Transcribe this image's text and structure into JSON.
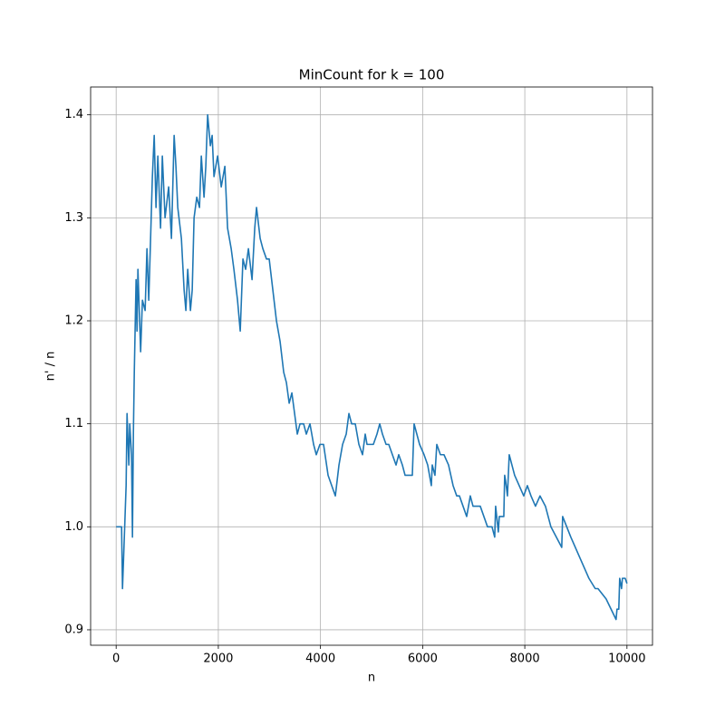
{
  "chart_data": {
    "type": "line",
    "title": "MinCount for k = 100",
    "x_label": "n",
    "y_label": "n' / n",
    "x": [
      0,
      106,
      124,
      160,
      195,
      213,
      248,
      266,
      301,
      319,
      337,
      355,
      390,
      408,
      426,
      479,
      514,
      567,
      603,
      638,
      674,
      709,
      745,
      780,
      816,
      869,
      904,
      957,
      1028,
      1082,
      1135,
      1170,
      1206,
      1277,
      1330,
      1365,
      1401,
      1454,
      1489,
      1525,
      1578,
      1631,
      1667,
      1720,
      1755,
      1791,
      1844,
      1879,
      1915,
      1986,
      2057,
      2128,
      2181,
      2252,
      2305,
      2376,
      2429,
      2482,
      2535,
      2589,
      2660,
      2713,
      2748,
      2819,
      2872,
      2943,
      2996,
      3067,
      3138,
      3209,
      3280,
      3333,
      3387,
      3440,
      3493,
      3546,
      3599,
      3670,
      3723,
      3794,
      3865,
      3918,
      3989,
      4060,
      4149,
      4220,
      4291,
      4362,
      4433,
      4504,
      4557,
      4610,
      4681,
      4752,
      4823,
      4876,
      4911,
      4965,
      5035,
      5106,
      5160,
      5213,
      5284,
      5337,
      5408,
      5479,
      5532,
      5603,
      5656,
      5709,
      5798,
      5833,
      5940,
      6028,
      6099,
      6170,
      6188,
      6241,
      6277,
      6348,
      6418,
      6507,
      6596,
      6667,
      6720,
      6791,
      6862,
      6933,
      6986,
      7039,
      7128,
      7199,
      7270,
      7358,
      7411,
      7429,
      7482,
      7500,
      7589,
      7606,
      7624,
      7660,
      7695,
      7801,
      7890,
      7979,
      8050,
      8121,
      8209,
      8298,
      8404,
      8511,
      8723,
      8741,
      8901,
      9078,
      9255,
      9379,
      9433,
      9592,
      9787,
      9805,
      9840,
      9858,
      9894,
      9911,
      9965,
      10000
    ],
    "series": [
      {
        "name": "n' / n",
        "color": "#1f77b4",
        "values": [
          1.0,
          1.0,
          0.94,
          0.99,
          1.04,
          1.11,
          1.06,
          1.1,
          1.07,
          0.99,
          1.09,
          1.15,
          1.24,
          1.19,
          1.25,
          1.17,
          1.22,
          1.21,
          1.27,
          1.22,
          1.28,
          1.34,
          1.38,
          1.31,
          1.36,
          1.29,
          1.36,
          1.3,
          1.33,
          1.28,
          1.38,
          1.35,
          1.31,
          1.28,
          1.23,
          1.21,
          1.25,
          1.21,
          1.23,
          1.3,
          1.32,
          1.31,
          1.36,
          1.32,
          1.35,
          1.4,
          1.37,
          1.38,
          1.34,
          1.36,
          1.33,
          1.35,
          1.29,
          1.27,
          1.25,
          1.22,
          1.19,
          1.26,
          1.25,
          1.27,
          1.24,
          1.29,
          1.31,
          1.28,
          1.27,
          1.26,
          1.26,
          1.23,
          1.2,
          1.18,
          1.15,
          1.14,
          1.12,
          1.13,
          1.11,
          1.09,
          1.1,
          1.1,
          1.09,
          1.1,
          1.08,
          1.07,
          1.08,
          1.08,
          1.05,
          1.04,
          1.03,
          1.06,
          1.08,
          1.09,
          1.11,
          1.1,
          1.1,
          1.08,
          1.07,
          1.09,
          1.08,
          1.08,
          1.08,
          1.09,
          1.1,
          1.09,
          1.08,
          1.08,
          1.07,
          1.06,
          1.07,
          1.06,
          1.05,
          1.05,
          1.05,
          1.1,
          1.08,
          1.07,
          1.06,
          1.04,
          1.06,
          1.05,
          1.08,
          1.07,
          1.07,
          1.06,
          1.04,
          1.03,
          1.03,
          1.02,
          1.01,
          1.03,
          1.02,
          1.02,
          1.02,
          1.01,
          1.0,
          1.0,
          0.99,
          1.02,
          0.995,
          1.01,
          1.01,
          1.05,
          1.045,
          1.03,
          1.07,
          1.05,
          1.04,
          1.03,
          1.04,
          1.03,
          1.02,
          1.03,
          1.02,
          1.0,
          0.98,
          1.01,
          0.99,
          0.97,
          0.95,
          0.94,
          0.94,
          0.93,
          0.91,
          0.92,
          0.92,
          0.95,
          0.94,
          0.95,
          0.95,
          0.945
        ]
      }
    ],
    "xlim": [
      -500,
      10500
    ],
    "ylim": [
      0.885,
      1.427
    ],
    "xticks": [
      0,
      2000,
      4000,
      6000,
      8000,
      10000
    ],
    "yticks": [
      0.9,
      {
        "value": 1,
        "label": "1.0"
      },
      1.1,
      1.2,
      1.3,
      1.4
    ],
    "grid": true
  }
}
